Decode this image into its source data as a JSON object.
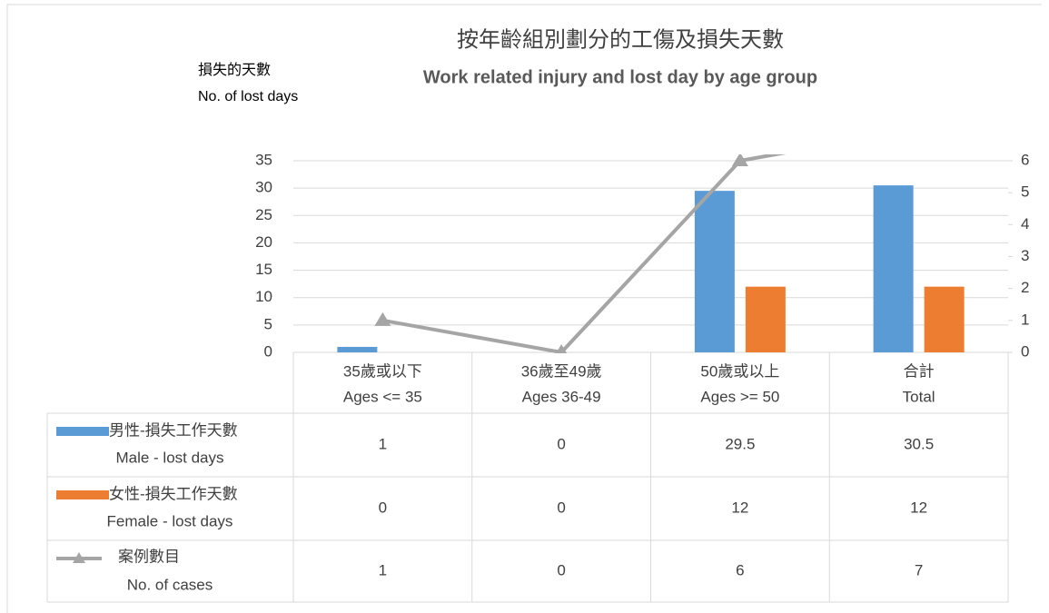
{
  "chart_data": {
    "type": "bar",
    "title": "按年齡組別劃分的工傷及損失天數",
    "subtitle": "Work related injury and lost day by age group",
    "y_label": [
      "損失的天數",
      "No. of lost days"
    ],
    "categories": [
      [
        "35歲或以下",
        "Ages <= 35"
      ],
      [
        "36歲至49歲",
        "Ages 36-49"
      ],
      [
        "50歲或以上",
        "Ages >= 50"
      ],
      [
        "合計",
        "Total"
      ]
    ],
    "series": [
      {
        "name": [
          "男性-損失工作天數",
          "Male - lost days"
        ],
        "type": "bar",
        "color": "#5b9bd5",
        "values": [
          1,
          0,
          29.5,
          30.5
        ]
      },
      {
        "name": [
          "女性-損失工作天數",
          "Female - lost days"
        ],
        "type": "bar",
        "color": "#ed7d31",
        "values": [
          0,
          0,
          12,
          12
        ]
      },
      {
        "name": [
          "案例數目",
          "No. of cases"
        ],
        "type": "line",
        "axis": "y2",
        "color": "#a5a5a5",
        "values": [
          1,
          0,
          6,
          7
        ]
      }
    ],
    "ylim": [
      0,
      35
    ],
    "yticks": [
      0,
      5,
      10,
      15,
      20,
      25,
      30,
      35
    ],
    "y2lim": [
      0,
      6
    ],
    "y2ticks": [
      0,
      1,
      2,
      3,
      4,
      5,
      6
    ],
    "grid": true,
    "data_table": true
  }
}
